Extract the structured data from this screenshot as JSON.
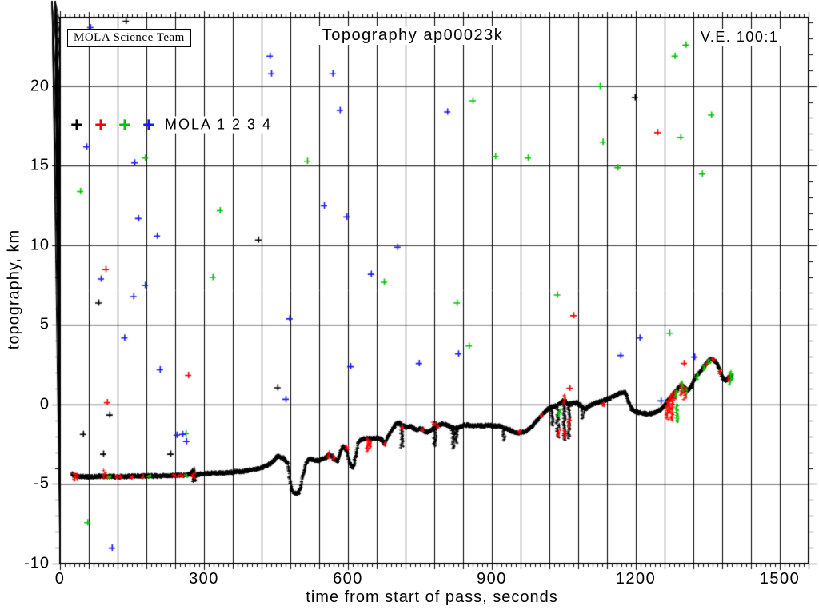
{
  "header": {
    "mola_box": "MOLA Science Team",
    "title": "Topography ap00023k",
    "ve": "V.E. 100:1"
  },
  "legend": {
    "label": "MOLA 1 2 3 4",
    "markers": [
      {
        "name": "mola-1",
        "glyph": "+",
        "color": "#000000"
      },
      {
        "name": "mola-2",
        "glyph": "+",
        "color": "#ff0000"
      },
      {
        "name": "mola-3",
        "glyph": "+",
        "color": "#00c300"
      },
      {
        "name": "mola-4",
        "glyph": "+",
        "color": "#1919ff"
      }
    ]
  },
  "chart_data": {
    "type": "scatter",
    "title": "Topography ap00023k",
    "xlabel": "time from start of pass, seconds",
    "ylabel": "topography, km",
    "xlim": [
      0,
      1560
    ],
    "ylim": [
      -10,
      24.3
    ],
    "xticks_major": [
      0,
      300,
      600,
      900,
      1200,
      1500
    ],
    "xtick_labels": [
      "0",
      "300",
      "600",
      "900",
      "1200",
      "1500"
    ],
    "x_grid_step": 60,
    "x_minor_step": 10,
    "yticks_major": [
      -10,
      -5,
      0,
      5,
      10,
      15,
      20
    ],
    "ytick_labels": [
      "-10",
      "-5",
      "0",
      "5",
      "10",
      "15",
      "20"
    ],
    "y_grid_step": 5,
    "y_minor_step": 1,
    "grid": true,
    "marker": "plus",
    "colors": {
      "mola1": "#000000",
      "mola2": "#ff0000",
      "mola3": "#00c300",
      "mola4": "#1919ff",
      "grid": "#000000"
    },
    "profile_series": "MOLA ground track topography",
    "profile": [
      [
        25,
        -4.35
      ],
      [
        30,
        -4.5
      ],
      [
        60,
        -4.55
      ],
      [
        90,
        -4.5
      ],
      [
        120,
        -4.55
      ],
      [
        160,
        -4.5
      ],
      [
        200,
        -4.5
      ],
      [
        240,
        -4.45
      ],
      [
        272,
        -4.4
      ],
      [
        276,
        -4.1
      ],
      [
        280,
        -4.75
      ],
      [
        284,
        -4.4
      ],
      [
        300,
        -4.35
      ],
      [
        340,
        -4.3
      ],
      [
        380,
        -4.2
      ],
      [
        410,
        -4.05
      ],
      [
        430,
        -3.85
      ],
      [
        443,
        -3.6
      ],
      [
        452,
        -3.25
      ],
      [
        458,
        -3.3
      ],
      [
        468,
        -3.45
      ],
      [
        474,
        -3.7
      ],
      [
        478,
        -4.5
      ],
      [
        482,
        -5.3
      ],
      [
        488,
        -5.6
      ],
      [
        497,
        -5.55
      ],
      [
        503,
        -5.0
      ],
      [
        508,
        -4.2
      ],
      [
        512,
        -3.7
      ],
      [
        517,
        -3.45
      ],
      [
        525,
        -3.45
      ],
      [
        535,
        -3.55
      ],
      [
        545,
        -3.45
      ],
      [
        553,
        -3.35
      ],
      [
        560,
        -3.15
      ],
      [
        566,
        -3.25
      ],
      [
        572,
        -3.45
      ],
      [
        577,
        -3.55
      ],
      [
        582,
        -3.2
      ],
      [
        588,
        -2.65
      ],
      [
        593,
        -2.7
      ],
      [
        598,
        -2.95
      ],
      [
        603,
        -3.6
      ],
      [
        608,
        -3.95
      ],
      [
        612,
        -3.75
      ],
      [
        617,
        -3.1
      ],
      [
        621,
        -2.4
      ],
      [
        626,
        -2.2
      ],
      [
        640,
        -2.1
      ],
      [
        652,
        -2.15
      ],
      [
        662,
        -2.1
      ],
      [
        670,
        -2.2
      ],
      [
        676,
        -2.45
      ],
      [
        681,
        -2.1
      ],
      [
        687,
        -1.8
      ],
      [
        694,
        -1.45
      ],
      [
        700,
        -1.2
      ],
      [
        706,
        -1.15
      ],
      [
        712,
        -1.3
      ],
      [
        718,
        -1.4
      ],
      [
        724,
        -1.45
      ],
      [
        730,
        -1.35
      ],
      [
        737,
        -1.5
      ],
      [
        743,
        -1.6
      ],
      [
        750,
        -1.5
      ],
      [
        757,
        -1.6
      ],
      [
        763,
        -1.75
      ],
      [
        770,
        -1.65
      ],
      [
        777,
        -1.5
      ],
      [
        783,
        -1.35
      ],
      [
        790,
        -1.3
      ],
      [
        797,
        -1.2
      ],
      [
        803,
        -1.25
      ],
      [
        810,
        -1.35
      ],
      [
        817,
        -1.45
      ],
      [
        824,
        -1.5
      ],
      [
        830,
        -1.45
      ],
      [
        837,
        -1.35
      ],
      [
        843,
        -1.3
      ],
      [
        852,
        -1.3
      ],
      [
        862,
        -1.35
      ],
      [
        872,
        -1.3
      ],
      [
        882,
        -1.35
      ],
      [
        892,
        -1.3
      ],
      [
        902,
        -1.35
      ],
      [
        912,
        -1.35
      ],
      [
        920,
        -1.4
      ],
      [
        928,
        -1.5
      ],
      [
        936,
        -1.6
      ],
      [
        944,
        -1.7
      ],
      [
        952,
        -1.8
      ],
      [
        960,
        -1.75
      ],
      [
        968,
        -1.7
      ],
      [
        976,
        -1.55
      ],
      [
        984,
        -1.35
      ],
      [
        992,
        -1.05
      ],
      [
        1000,
        -0.8
      ],
      [
        1008,
        -0.5
      ],
      [
        1016,
        -0.3
      ],
      [
        1024,
        -0.15
      ],
      [
        1032,
        -0.1
      ],
      [
        1040,
        0.05
      ],
      [
        1048,
        0.25
      ],
      [
        1053,
        0.2
      ],
      [
        1058,
        0.0
      ],
      [
        1064,
        0.05
      ],
      [
        1070,
        0.1
      ],
      [
        1076,
        0.1
      ],
      [
        1082,
        0.0
      ],
      [
        1088,
        -0.15
      ],
      [
        1093,
        -0.3
      ],
      [
        1098,
        -0.2
      ],
      [
        1104,
        -0.05
      ],
      [
        1112,
        0.05
      ],
      [
        1122,
        0.15
      ],
      [
        1132,
        0.25
      ],
      [
        1142,
        0.35
      ],
      [
        1152,
        0.5
      ],
      [
        1162,
        0.65
      ],
      [
        1170,
        0.75
      ],
      [
        1176,
        0.8
      ],
      [
        1181,
        0.6
      ],
      [
        1186,
        0.1
      ],
      [
        1191,
        -0.25
      ],
      [
        1197,
        -0.4
      ],
      [
        1205,
        -0.5
      ],
      [
        1215,
        -0.55
      ],
      [
        1225,
        -0.6
      ],
      [
        1235,
        -0.55
      ],
      [
        1244,
        -0.45
      ],
      [
        1252,
        -0.3
      ],
      [
        1258,
        -0.1
      ],
      [
        1263,
        0.1
      ],
      [
        1268,
        0.3
      ],
      [
        1273,
        0.45
      ],
      [
        1278,
        0.65
      ],
      [
        1284,
        0.85
      ],
      [
        1290,
        1.1
      ],
      [
        1296,
        1.25
      ],
      [
        1301,
        1.05
      ],
      [
        1306,
        0.9
      ],
      [
        1311,
        0.95
      ],
      [
        1316,
        1.2
      ],
      [
        1322,
        1.6
      ],
      [
        1329,
        1.9
      ],
      [
        1336,
        2.15
      ],
      [
        1343,
        2.45
      ],
      [
        1350,
        2.7
      ],
      [
        1356,
        2.85
      ],
      [
        1362,
        2.8
      ],
      [
        1368,
        2.65
      ],
      [
        1373,
        2.35
      ],
      [
        1378,
        1.85
      ],
      [
        1382,
        1.6
      ],
      [
        1387,
        1.5
      ],
      [
        1392,
        1.65
      ],
      [
        1396,
        1.8
      ],
      [
        1400,
        1.75
      ]
    ],
    "spikes": [
      [
        30,
        -4.3,
        -4.75,
        "r"
      ],
      [
        35,
        -4.4,
        -4.7,
        "r"
      ],
      [
        92,
        -4.15,
        -4.6,
        "r"
      ],
      [
        100,
        -4.5,
        -4.65,
        "r"
      ],
      [
        118,
        -4.45,
        -4.6,
        "r"
      ],
      [
        126,
        -4.5,
        -4.6,
        "r"
      ],
      [
        148,
        -4.5,
        -4.62,
        "r"
      ],
      [
        170,
        -4.45,
        -4.6,
        "r"
      ],
      [
        238,
        -4.38,
        -4.5,
        "r"
      ],
      [
        248,
        -4.4,
        -4.5,
        "r"
      ],
      [
        256,
        -4.42,
        -4.52,
        "r"
      ],
      [
        103,
        -4.52,
        -4.6,
        "g"
      ],
      [
        185,
        -4.45,
        -4.55,
        "g"
      ],
      [
        262,
        -4.4,
        -4.5,
        "g"
      ],
      [
        278,
        -4.0,
        -4.85,
        "k"
      ],
      [
        278,
        -4.3,
        -4.6,
        "r"
      ],
      [
        560,
        -3.0,
        -3.35,
        "r"
      ],
      [
        570,
        -3.2,
        -3.5,
        "r"
      ],
      [
        597,
        -2.6,
        -2.8,
        "r"
      ],
      [
        640,
        -2.15,
        -2.9,
        "r"
      ],
      [
        645,
        -2.3,
        -2.7,
        "r"
      ],
      [
        677,
        -2.35,
        -2.6,
        "r"
      ],
      [
        712,
        -1.3,
        -2.7,
        "k"
      ],
      [
        714,
        -1.35,
        -1.5,
        "r"
      ],
      [
        755,
        -1.5,
        -1.65,
        "r"
      ],
      [
        781,
        -1.05,
        -2.6,
        "k"
      ],
      [
        779,
        -1.1,
        -1.3,
        "r"
      ],
      [
        788,
        -1.3,
        -1.45,
        "r"
      ],
      [
        819,
        -1.45,
        -2.75,
        "k"
      ],
      [
        825,
        -1.5,
        -2.4,
        "k"
      ],
      [
        925,
        -1.45,
        -2.25,
        "k"
      ],
      [
        958,
        -1.6,
        -1.8,
        "r"
      ],
      [
        1003,
        -0.6,
        -0.75,
        "r"
      ],
      [
        1025,
        -0.05,
        -1.3,
        "k"
      ],
      [
        1037,
        -0.1,
        -2.05,
        "k"
      ],
      [
        1039,
        -1.6,
        -2.0,
        "r"
      ],
      [
        1041,
        -0.3,
        -0.7,
        "g"
      ],
      [
        1050,
        0.3,
        -2.2,
        "k"
      ],
      [
        1050,
        0.1,
        0.6,
        "r"
      ],
      [
        1052,
        -1.6,
        -2.1,
        "r"
      ],
      [
        1060,
        0.0,
        -2.1,
        "k"
      ],
      [
        1061,
        -0.9,
        -1.4,
        "r"
      ],
      [
        1090,
        -0.3,
        -0.85,
        "k"
      ],
      [
        1131,
        0.1,
        -0.1,
        "r"
      ],
      [
        1265,
        0.2,
        -0.9,
        "r"
      ],
      [
        1270,
        0.5,
        -0.5,
        "r"
      ],
      [
        1275,
        0.7,
        -1.0,
        "r"
      ],
      [
        1280,
        0.9,
        0.3,
        "r"
      ],
      [
        1286,
        0.0,
        -1.1,
        "g"
      ],
      [
        1284,
        0.9,
        0.5,
        "g"
      ],
      [
        1294,
        1.35,
        0.6,
        "r"
      ],
      [
        1298,
        1.4,
        0.9,
        "g"
      ],
      [
        1302,
        1.1,
        0.35,
        "r"
      ],
      [
        1306,
        1.0,
        0.7,
        "g"
      ],
      [
        1326,
        1.9,
        1.6,
        "g"
      ],
      [
        1340,
        2.45,
        2.2,
        "g"
      ],
      [
        1348,
        2.65,
        2.45,
        "r"
      ],
      [
        1352,
        2.8,
        2.6,
        "g"
      ],
      [
        1360,
        2.9,
        2.75,
        "r"
      ],
      [
        1375,
        2.2,
        1.95,
        "r"
      ],
      [
        1396,
        2.1,
        1.3,
        "g"
      ],
      [
        1394,
        1.8,
        1.5,
        "r"
      ],
      [
        1399,
        2.0,
        1.6,
        "g"
      ]
    ],
    "scatter": {
      "black": [
        [
          137,
          24.1
        ],
        [
          413,
          10.35
        ],
        [
          80,
          6.4
        ],
        [
          453,
          1.07
        ],
        [
          48,
          -1.85
        ],
        [
          103,
          -0.64
        ],
        [
          230,
          -3.1
        ],
        [
          90,
          -3.1
        ],
        [
          1198,
          19.3
        ]
      ],
      "red": [
        [
          95,
          8.5
        ],
        [
          98,
          0.14
        ],
        [
          267,
          1.85
        ],
        [
          1070,
          5.6
        ],
        [
          1245,
          17.1
        ],
        [
          1300,
          2.6
        ],
        [
          1062,
          1.05
        ]
      ],
      "green": [
        [
          42,
          13.4
        ],
        [
          177,
          15.5
        ],
        [
          318,
          8.0
        ],
        [
          333,
          12.2
        ],
        [
          515,
          15.3
        ],
        [
          675,
          7.7
        ],
        [
          827,
          6.4
        ],
        [
          852,
          3.7
        ],
        [
          860,
          19.1
        ],
        [
          907,
          15.6
        ],
        [
          975,
          15.5
        ],
        [
          1036,
          6.9
        ],
        [
          1125,
          20.0
        ],
        [
          1131,
          16.5
        ],
        [
          1162,
          14.9
        ],
        [
          1270,
          4.5
        ],
        [
          1281,
          21.9
        ],
        [
          1293,
          16.8
        ],
        [
          1304,
          22.6
        ],
        [
          1338,
          14.5
        ],
        [
          1357,
          18.2
        ],
        [
          57,
          -7.4
        ],
        [
          262,
          -1.8
        ]
      ],
      "blue": [
        [
          63,
          23.7
        ],
        [
          55,
          16.2
        ],
        [
          437,
          21.9
        ],
        [
          440,
          20.8
        ],
        [
          568,
          20.8
        ],
        [
          583,
          18.5
        ],
        [
          807,
          18.4
        ],
        [
          155,
          15.2
        ],
        [
          163,
          11.7
        ],
        [
          202,
          10.6
        ],
        [
          85,
          7.9
        ],
        [
          177,
          7.5
        ],
        [
          153,
          6.8
        ],
        [
          550,
          12.5
        ],
        [
          597,
          11.8
        ],
        [
          703,
          9.9
        ],
        [
          648,
          8.2
        ],
        [
          478,
          5.4
        ],
        [
          134,
          4.2
        ],
        [
          208,
          2.2
        ],
        [
          605,
          2.4
        ],
        [
          748,
          2.6
        ],
        [
          830,
          3.2
        ],
        [
          1208,
          4.2
        ],
        [
          1168,
          3.1
        ],
        [
          1322,
          3.0
        ],
        [
          108,
          -9.0
        ],
        [
          470,
          0.35
        ],
        [
          243,
          -1.9
        ],
        [
          255,
          -1.85
        ],
        [
          263,
          -2.3
        ],
        [
          1252,
          0.25
        ]
      ]
    }
  }
}
